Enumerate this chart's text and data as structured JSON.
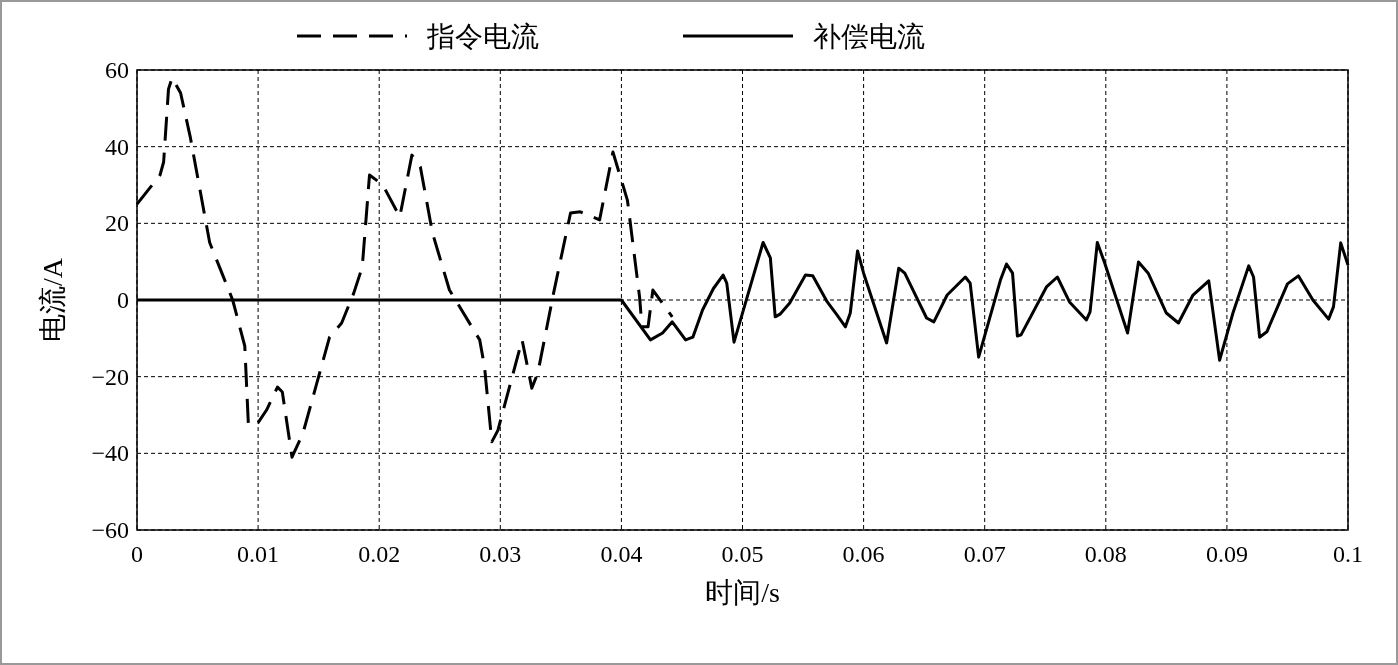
{
  "chart_data": {
    "type": "line",
    "xlabel": "时间/s",
    "ylabel": "电流/A",
    "xlim": [
      0,
      0.1
    ],
    "ylim": [
      -60,
      60
    ],
    "xticks": [
      0,
      0.01,
      0.02,
      0.03,
      0.04,
      0.05,
      0.06,
      0.07,
      0.08,
      0.09,
      0.1
    ],
    "yticks": [
      {
        "value": -60,
        "label": "−60"
      },
      {
        "value": -40,
        "label": "−40"
      },
      {
        "value": -20,
        "label": "−20"
      },
      0,
      20,
      40,
      60
    ],
    "grid": true,
    "legend": "top",
    "series": [
      {
        "name": "指令电流",
        "color": "#000000",
        "line_style": "dashed",
        "x": [
          0,
          0.0019,
          0.0022,
          0.0026,
          0.0029,
          0.0036,
          0.0044,
          0.006,
          0.0079,
          0.0089,
          0.0092,
          0.01,
          0.0107,
          0.0116,
          0.012,
          0.0128,
          0.0137,
          0.0159,
          0.0169,
          0.0179,
          0.0186,
          0.0192,
          0.0203,
          0.0217,
          0.0227,
          0.0234,
          0.0244,
          0.0258,
          0.0283,
          0.0287,
          0.0293,
          0.0298,
          0.0318,
          0.0326,
          0.0331,
          0.0344,
          0.0358,
          0.0366,
          0.0382,
          0.0393,
          0.0405,
          0.0415,
          0.0417,
          0.0422,
          0.0426,
          0.0442
        ],
        "values": [
          25,
          32.6,
          36,
          55,
          58,
          54,
          42.5,
          15,
          0,
          -12,
          -32.6,
          -32,
          -28.7,
          -22.7,
          -24,
          -41,
          -34.8,
          -9.7,
          -6,
          1.8,
          8.6,
          32.6,
          30,
          21.7,
          37.8,
          34.7,
          17.5,
          2.6,
          -10.4,
          -17.5,
          -37,
          -34,
          -10.4,
          -23,
          -19,
          1.8,
          22.7,
          23,
          20.9,
          38.6,
          26,
          0.8,
          -7,
          -7,
          2.6,
          -4.4
        ]
      },
      {
        "name": "补偿电流",
        "color": "#000000",
        "line_style": "solid",
        "x": [
          0,
          0.04,
          0.0424,
          0.0434,
          0.0442,
          0.0453,
          0.0459,
          0.0467,
          0.0476,
          0.0484,
          0.0487,
          0.0493,
          0.0517,
          0.0523,
          0.0527,
          0.0531,
          0.0539,
          0.0552,
          0.0558,
          0.057,
          0.0578,
          0.0585,
          0.0589,
          0.0595,
          0.06,
          0.0619,
          0.0629,
          0.0634,
          0.0652,
          0.0658,
          0.0669,
          0.0684,
          0.0688,
          0.0695,
          0.0713,
          0.0718,
          0.0723,
          0.0727,
          0.073,
          0.0751,
          0.076,
          0.077,
          0.0784,
          0.0787,
          0.0793,
          0.0799,
          0.0818,
          0.0827,
          0.0835,
          0.085,
          0.086,
          0.0872,
          0.0885,
          0.0894,
          0.0905,
          0.0918,
          0.0922,
          0.0927,
          0.0933,
          0.095,
          0.0959,
          0.0971,
          0.0984,
          0.0988,
          0.0994,
          0.1
        ],
        "values": [
          0,
          0,
          -10.4,
          -8.6,
          -5.7,
          -10.4,
          -9.7,
          -2.6,
          3,
          6.5,
          4.4,
          -11,
          15,
          11,
          -4.4,
          -3.7,
          -0.8,
          6.5,
          6.3,
          -0.5,
          -3.9,
          -7,
          -3.4,
          12.8,
          7,
          -11.2,
          8.3,
          7,
          -4.7,
          -5.7,
          1.3,
          6,
          4.4,
          -14.9,
          5.2,
          9.4,
          7,
          -9.4,
          -9.1,
          3.4,
          6,
          -0.5,
          -5.2,
          -3.1,
          15,
          9.7,
          -8.6,
          9.9,
          7,
          -3.4,
          -6,
          1.3,
          5,
          -15.7,
          -3.4,
          8.9,
          6,
          -9.7,
          -8.3,
          4.2,
          6.3,
          0,
          -5,
          -1.8,
          14.9,
          9.1
        ]
      }
    ]
  }
}
